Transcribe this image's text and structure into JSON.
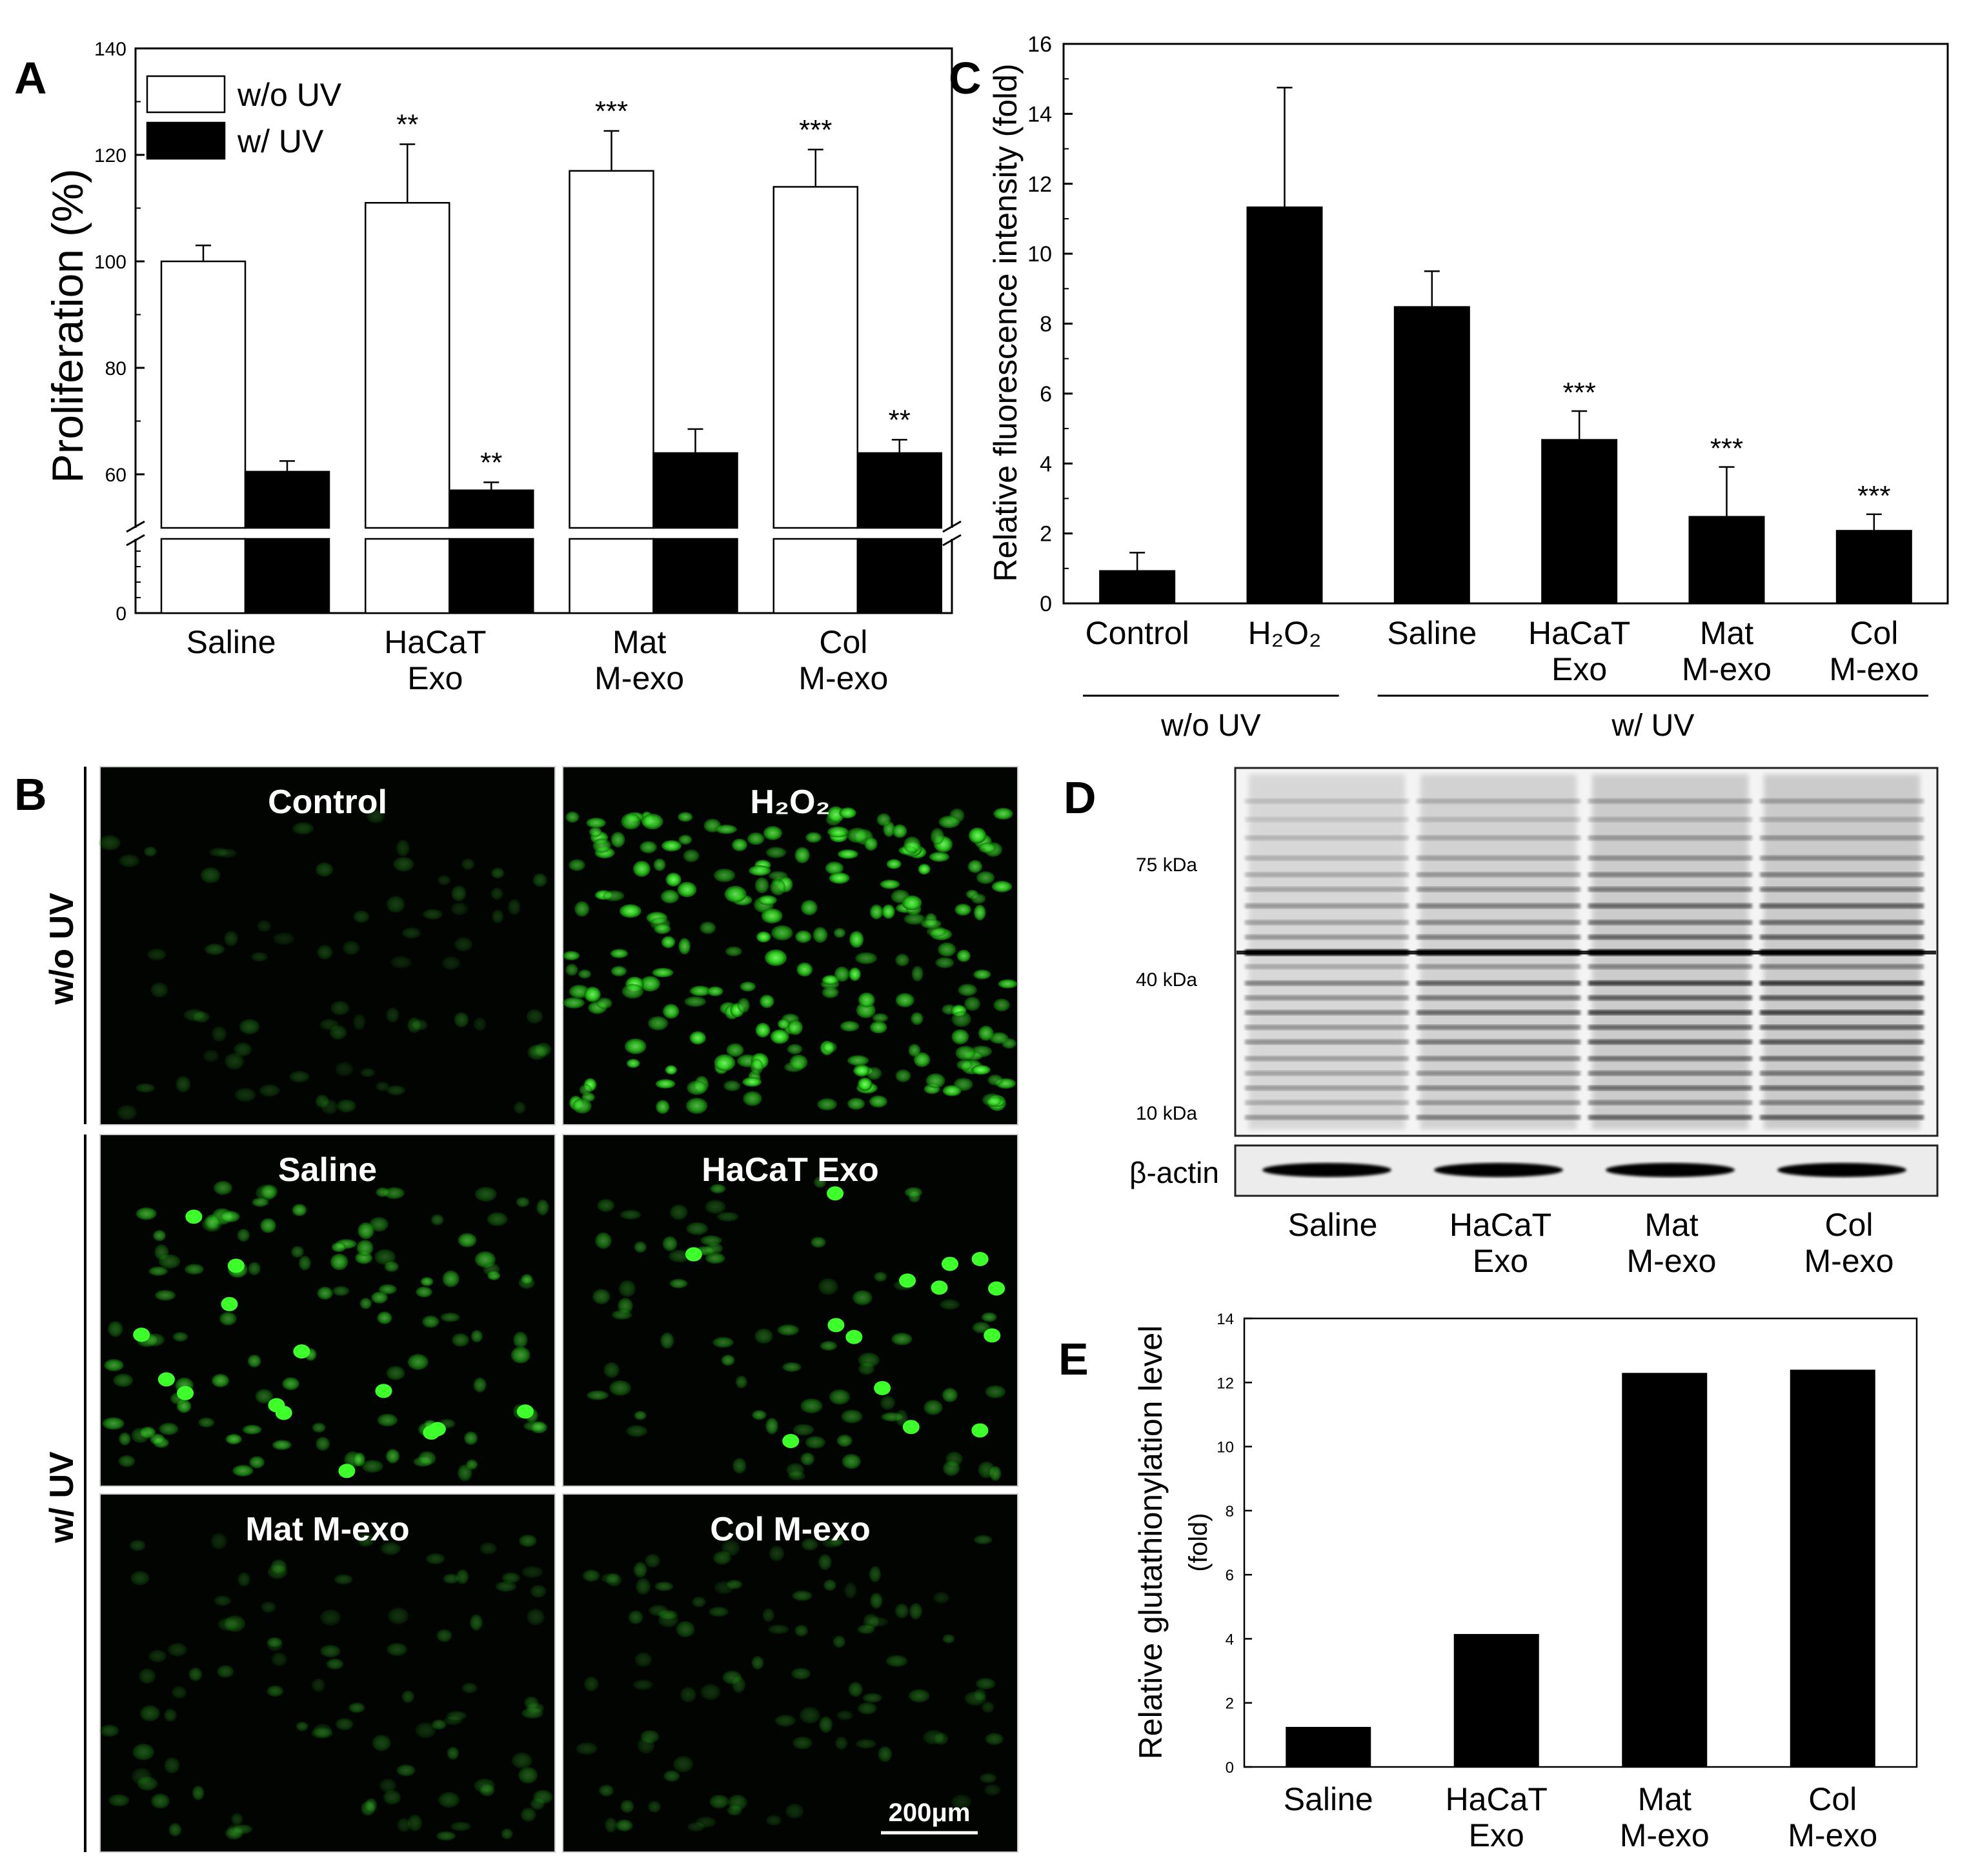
{
  "panels": {
    "A": "A",
    "B": "B",
    "C": "C",
    "D": "D",
    "E": "E"
  },
  "chart_data": [
    {
      "id": "A",
      "type": "bar",
      "ylabel": "Proliferation (%)",
      "yticks": [
        "0",
        "60",
        "80",
        "100",
        "120",
        "140"
      ],
      "ylim": [
        0,
        140
      ],
      "axis_break": [
        50,
        60
      ],
      "categories": [
        "Saline",
        "HaCaT\nExo",
        "Mat\nM-exo",
        "Col\nM-exo"
      ],
      "series": [
        {
          "name": "w/o UV",
          "color": "#ffffff",
          "values": [
            100,
            111,
            117,
            114
          ],
          "errors": [
            3,
            11,
            7.5,
            7
          ],
          "sig": [
            "",
            "**",
            "***",
            "***"
          ]
        },
        {
          "name": "w/ UV",
          "color": "#000000",
          "values": [
            60.5,
            57,
            64,
            64
          ],
          "errors": [
            2,
            1.5,
            4.5,
            2.5
          ],
          "sig": [
            "",
            "**",
            "",
            "**"
          ]
        }
      ],
      "legend": "top-left"
    },
    {
      "id": "C",
      "type": "bar",
      "ylabel": "Relative fluorescence intensity (fold)",
      "yticks": [
        "0",
        "2",
        "4",
        "6",
        "8",
        "10",
        "12",
        "14",
        "16"
      ],
      "ylim": [
        0,
        16
      ],
      "categories": [
        "Control",
        "H₂O₂",
        "Saline",
        "HaCaT\nExo",
        "Mat\nM-exo",
        "Col\nM-exo"
      ],
      "values": [
        0.95,
        11.35,
        8.5,
        4.7,
        2.5,
        2.1
      ],
      "errors": [
        0.5,
        3.4,
        1.0,
        0.8,
        1.4,
        0.45
      ],
      "sig": [
        "",
        "",
        "",
        "***",
        "***",
        "***"
      ],
      "groups": [
        {
          "label": "w/o UV",
          "from": 0,
          "to": 1
        },
        {
          "label": "w/ UV",
          "from": 2,
          "to": 5
        }
      ]
    },
    {
      "id": "E",
      "type": "bar",
      "ylabel": "Relative glutathionylation level\n(fold)",
      "yticks": [
        "0",
        "2",
        "4",
        "6",
        "8",
        "10",
        "12",
        "14"
      ],
      "ylim": [
        0,
        14
      ],
      "categories": [
        "Saline",
        "HaCaT\nExo",
        "Mat\nM-exo",
        "Col\nM-exo"
      ],
      "values": [
        1.25,
        4.15,
        12.3,
        12.4
      ]
    }
  ],
  "microscopy": {
    "row_labels": [
      "w/o UV",
      "w/ UV"
    ],
    "tiles": [
      "Control",
      "H₂O₂",
      "Saline",
      "HaCaT Exo",
      "Mat M-exo",
      "Col M-exo"
    ],
    "scale_bar": "200μm"
  },
  "blot": {
    "markers": [
      "75 kDa",
      "40 kDa",
      "10 kDa"
    ],
    "loading_control": "β-actin",
    "lanes": [
      "Saline",
      "HaCaT\nExo",
      "Mat\nM-exo",
      "Col\nM-exo"
    ]
  }
}
